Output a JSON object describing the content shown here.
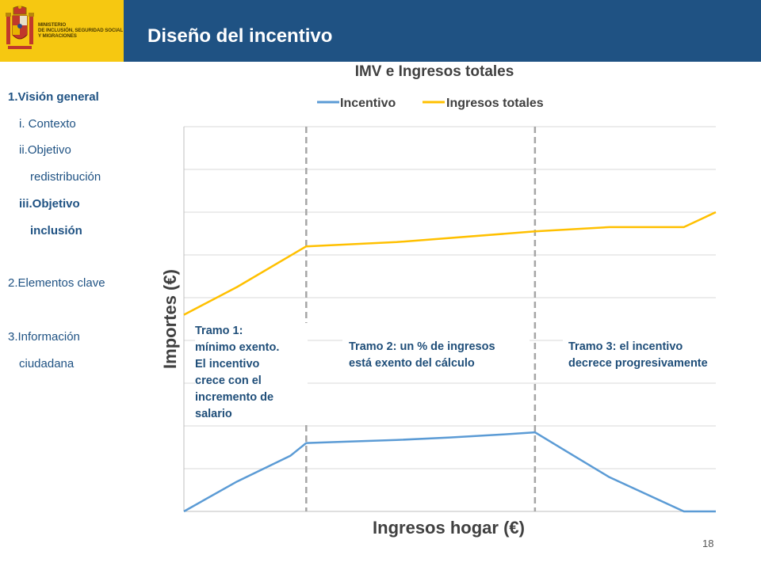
{
  "header": {
    "ministry_lines": [
      "MINISTERIO",
      "DE INCLUSIÓN, SEGURIDAD SOCIAL",
      "Y MIGRACIONES"
    ],
    "title": "Diseño del incentivo"
  },
  "sidebar": {
    "items": [
      {
        "label": "1.Visión general",
        "bold": true
      },
      {
        "label": "i. Contexto",
        "bold": false
      },
      {
        "label": "ii.Objetivo",
        "bold": false
      },
      {
        "label": "redistribución",
        "bold": false
      },
      {
        "label": "iii.Objetivo",
        "bold": true
      },
      {
        "label": "inclusión",
        "bold": true
      },
      {
        "label": "2.Elementos clave",
        "bold": false
      },
      {
        "label": "3.Información",
        "bold": false
      },
      {
        "label": "ciudadana",
        "bold": false
      }
    ]
  },
  "chart_data": {
    "type": "line",
    "title": "IMV e Ingresos totales",
    "xlabel": "Ingresos hogar (€)",
    "ylabel": "Importes (€)",
    "xlim": [
      0,
      100
    ],
    "ylim": [
      0,
      90
    ],
    "grid": true,
    "legend_position": "top",
    "series": [
      {
        "name": "Incentivo",
        "color": "#5b9bd5",
        "points": [
          [
            0,
            0
          ],
          [
            10,
            7
          ],
          [
            20,
            13
          ],
          [
            23,
            16
          ],
          [
            30,
            16.3
          ],
          [
            40,
            16.7
          ],
          [
            50,
            17.3
          ],
          [
            60,
            18
          ],
          [
            66,
            18.5
          ],
          [
            72,
            14
          ],
          [
            80,
            8
          ],
          [
            94,
            0
          ],
          [
            100,
            0
          ]
        ]
      },
      {
        "name": "Ingresos totales",
        "color": "#ffc000",
        "points": [
          [
            0,
            46
          ],
          [
            10,
            52.5
          ],
          [
            23,
            62
          ],
          [
            40,
            63
          ],
          [
            66,
            65.5
          ],
          [
            80,
            66.5
          ],
          [
            94,
            66.5
          ],
          [
            100,
            70
          ]
        ]
      }
    ],
    "vlines": [
      23,
      66
    ],
    "annotations": [
      {
        "text": "Tramo 1:\nmínimo exento.\nEl incentivo\ncrece con el\nincremento de\nsalario"
      },
      {
        "text": "Tramo 2: un % de ingresos\nestá exento del cálculo"
      },
      {
        "text": "Tramo 3: el incentivo\ndecrece progresivamente"
      }
    ]
  },
  "page_number": "18"
}
